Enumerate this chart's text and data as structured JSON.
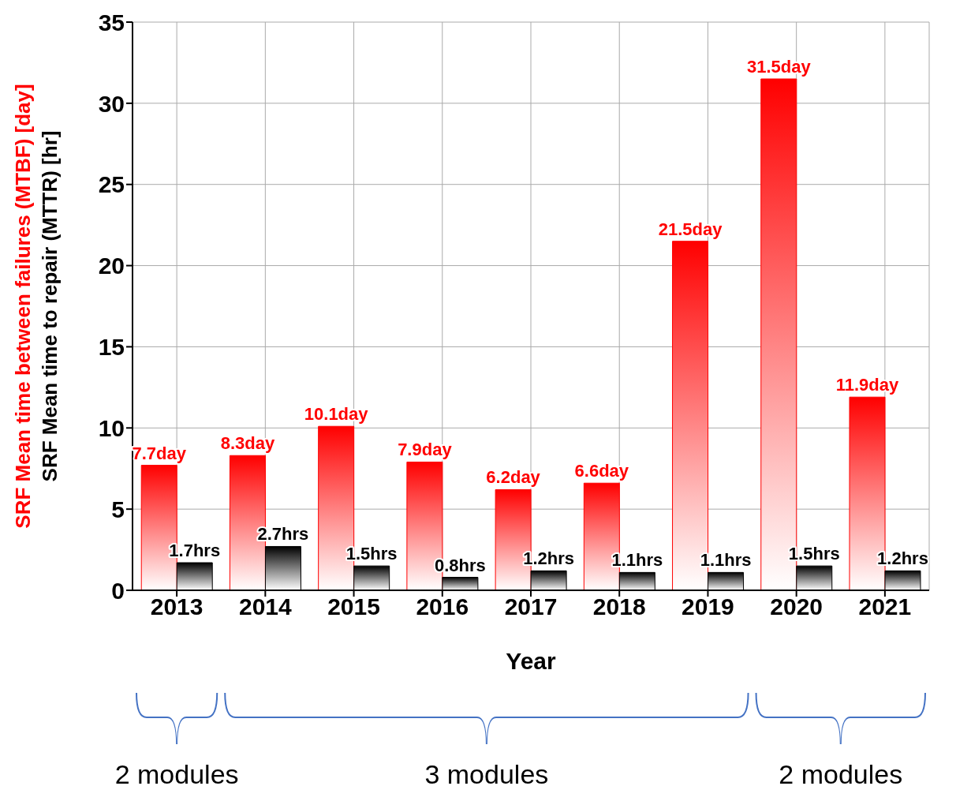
{
  "chart_data": {
    "type": "bar",
    "xlabel": "Year",
    "categories": [
      "2013",
      "2014",
      "2015",
      "2016",
      "2017",
      "2018",
      "2019",
      "2020",
      "2021"
    ],
    "series": [
      {
        "name": "SRF Mean time between failures (MTBF) [day]",
        "color": "#ff0000",
        "values": [
          7.7,
          8.3,
          10.1,
          7.9,
          6.2,
          6.6,
          21.5,
          31.5,
          11.9
        ],
        "value_labels": [
          "7.7day",
          "8.3day",
          "10.1day",
          "7.9day",
          "6.2day",
          "6.6day",
          "21.5day",
          "31.5day",
          "11.9day"
        ]
      },
      {
        "name": "SRF Mean time to repair (MTTR) [hr]",
        "color": "#000000",
        "values": [
          1.7,
          2.7,
          1.5,
          0.8,
          1.2,
          1.1,
          1.1,
          1.5,
          1.2
        ],
        "value_labels": [
          "1.7hrs",
          "2.7hrs",
          "1.5hrs",
          "0.8hrs",
          "1.2hrs",
          "1.1hrs",
          "1.1hrs",
          "1.5hrs",
          "1.2hrs"
        ]
      }
    ],
    "ylim": [
      0,
      35
    ],
    "yticks": [
      0,
      5,
      10,
      15,
      20,
      25,
      30,
      35
    ],
    "grid": true,
    "annotations": [
      "2 modules",
      "3 modules",
      "2 modules"
    ]
  }
}
